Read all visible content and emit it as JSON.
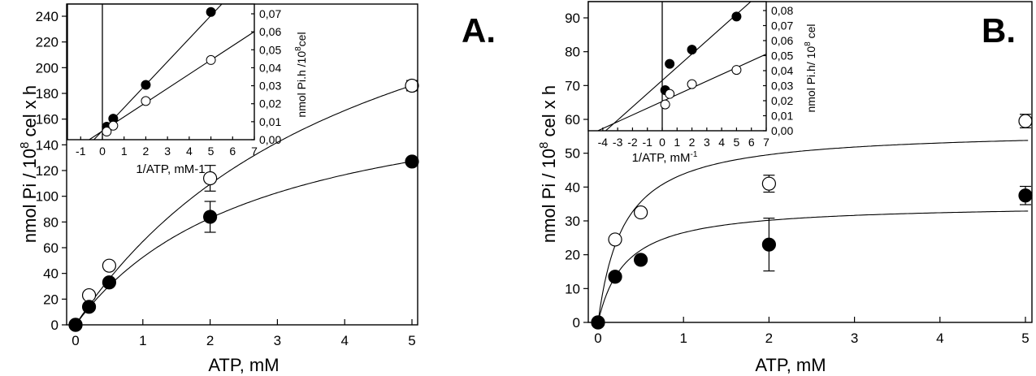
{
  "chart_data": [
    {
      "panel": "A.",
      "type": "scatter",
      "title": "",
      "panel_label": "A.",
      "xlabel": "ATP, mM",
      "ylabel": "nmol Pi / 10^8 cel x h",
      "xlim": [
        -0.05,
        5.1
      ],
      "ylim": [
        0,
        250
      ],
      "xticks": [
        0,
        1,
        2,
        3,
        4,
        5
      ],
      "yticks": [
        0,
        20,
        40,
        60,
        80,
        100,
        120,
        140,
        160,
        180,
        200,
        220,
        240
      ],
      "grid": false,
      "series": [
        {
          "name": "open circles",
          "marker": "open-circle",
          "x": [
            0,
            0.2,
            0.5,
            2,
            5
          ],
          "y": [
            0,
            23,
            46,
            114,
            186
          ],
          "yerr": [
            0,
            0,
            0,
            10,
            4
          ],
          "fit": {
            "model": "michaelis-menten",
            "vmax": 350,
            "km": 4.4
          }
        },
        {
          "name": "filled circles",
          "marker": "filled-circle",
          "x": [
            0,
            0.2,
            0.5,
            2,
            5
          ],
          "y": [
            0,
            14,
            33,
            84,
            127
          ],
          "yerr": [
            0,
            0,
            0,
            12,
            0
          ],
          "fit": {
            "model": "michaelis-menten",
            "vmax": 197,
            "km": 2.75
          }
        }
      ],
      "inset": {
        "type": "scatter",
        "xlabel": "1/ATP, mM-1",
        "ylabel": "nmol Pi.h /10^8cel",
        "xlim": [
          -1.6,
          7
        ],
        "ylim": [
          0,
          0.075
        ],
        "xticks": [
          -1,
          0,
          1,
          2,
          3,
          4,
          5,
          6,
          7
        ],
        "yticks": [
          "0,00",
          "0,01",
          "0,02",
          "0,03",
          "0,04",
          "0,05",
          "0,06",
          "0,07"
        ],
        "series": [
          {
            "name": "filled circles",
            "marker": "filled-circle",
            "x": [
              0.2,
              0.5,
              2,
              5
            ],
            "y": [
              0.0072,
              0.0117,
              0.0305,
              0.071
            ],
            "line": {
              "slope": 0.0128,
              "intercept": 0.005
            }
          },
          {
            "name": "open circles",
            "marker": "open-circle",
            "x": [
              0.2,
              0.5,
              2,
              5
            ],
            "y": [
              0.0045,
              0.0078,
              0.0215,
              0.0443
            ],
            "line": {
              "slope": 0.0079,
              "intercept": 0.0048
            }
          }
        ]
      }
    },
    {
      "panel": "B.",
      "type": "scatter",
      "title": "",
      "panel_label": "B.",
      "xlabel": "ATP, mM",
      "ylabel": "nmol Pi / 10^8 cel x h",
      "xlim": [
        -0.05,
        5.03
      ],
      "ylim": [
        0,
        95
      ],
      "xticks": [
        0,
        1,
        2,
        3,
        4,
        5
      ],
      "yticks": [
        0,
        10,
        20,
        30,
        40,
        50,
        60,
        70,
        80,
        90
      ],
      "grid": false,
      "series": [
        {
          "name": "open circles",
          "marker": "open-circle",
          "x": [
            0,
            0.2,
            0.5,
            2,
            5
          ],
          "y": [
            0,
            24.5,
            32.5,
            41,
            59.5
          ],
          "yerr": [
            0,
            0,
            0,
            2.5,
            2
          ],
          "fit": {
            "model": "michaelis-menten",
            "vmax": 57,
            "km": 0.3
          }
        },
        {
          "name": "filled circles",
          "marker": "filled-circle",
          "x": [
            0,
            0.2,
            0.5,
            2,
            5
          ],
          "y": [
            0,
            13.5,
            18.5,
            23,
            37.5
          ],
          "yerr": [
            0,
            0,
            0,
            7.8,
            2.7
          ],
          "fit": {
            "model": "michaelis-menten",
            "vmax": 35,
            "km": 0.32
          }
        }
      ],
      "inset": {
        "type": "scatter",
        "xlabel": "1/ATP, mM",
        "xlabel_sup": "-1",
        "ylabel": "nmol Pi.h/ 10^8 cel",
        "xlim": [
          -4.5,
          7
        ],
        "ylim": [
          0,
          0.085
        ],
        "xticks": [
          -4,
          -3,
          -2,
          -1,
          0,
          1,
          2,
          3,
          4,
          5,
          6,
          7
        ],
        "yticks": [
          "0,00",
          "0,01",
          "0,02",
          "0,03",
          "0,04",
          "0,05",
          "0,06",
          "0,07",
          "0,08"
        ],
        "series": [
          {
            "name": "filled circles",
            "marker": "filled-circle",
            "x": [
              0.2,
              0.5,
              2,
              5
            ],
            "y": [
              0.027,
              0.0445,
              0.054,
              0.076
            ],
            "line": {
              "slope": 0.0088,
              "intercept": 0.0335
            }
          },
          {
            "name": "open circles",
            "marker": "open-circle",
            "x": [
              0.2,
              0.5,
              2,
              5
            ],
            "y": [
              0.0175,
              0.0245,
              0.031,
              0.0405
            ],
            "line": {
              "slope": 0.0045,
              "intercept": 0.0195
            }
          }
        ]
      }
    }
  ],
  "panels": {
    "A": {
      "label": "A.",
      "xlabel": "ATP, mM",
      "ylabel_main": "nmol Pi / 10",
      "ylabel_sup": "8",
      "ylabel_tail": " cel x h",
      "inset_xlabel": "1/ATP, mM-1",
      "inset_ylabel_main": "nmol Pi.h /10",
      "inset_ylabel_sup": "8",
      "inset_ylabel_tail": "cel"
    },
    "B": {
      "label": "B.",
      "xlabel": "ATP, mM",
      "ylabel_main": "nmol Pi / 10",
      "ylabel_sup": "8",
      "ylabel_tail": " cel x h",
      "inset_xlabel": "1/ATP, mM",
      "inset_xlabel_sup": "-1",
      "inset_ylabel_main": "nmol Pi.h/ 10",
      "inset_ylabel_sup": "8",
      "inset_ylabel_tail": " cel"
    }
  }
}
